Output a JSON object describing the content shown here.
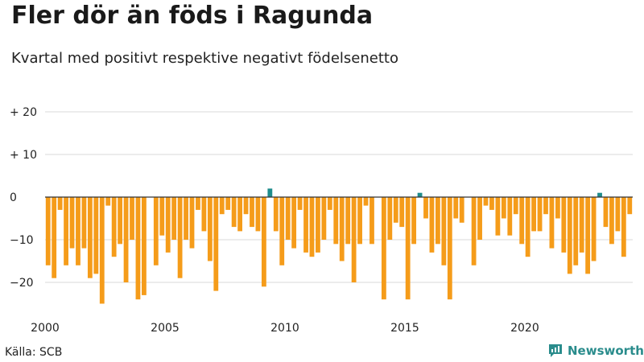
{
  "title": "Fler dör än föds i Ragunda",
  "subtitle": "Kvartal med positivt respektive negativt födelsenetto",
  "source": "Källa: SCB",
  "brand": "Newsworthy",
  "colors": {
    "negative": "#f59c1a",
    "positive": "#1e8c8c",
    "zero_line": "#333333",
    "grid": "#d9d9d9",
    "brand": "#2a8c8c"
  },
  "chart_data": {
    "type": "bar",
    "title": "Fler dör än föds i Ragunda",
    "subtitle": "Kvartal med positivt respektive negativt födelsenetto",
    "xlabel": "",
    "ylabel": "",
    "ylim": [
      -27,
      22
    ],
    "y_ticks": [
      {
        "value": 20,
        "label": "+ 20"
      },
      {
        "value": 10,
        "label": "+ 10"
      },
      {
        "value": 0,
        "label": "0"
      },
      {
        "value": -10,
        "label": "−10"
      },
      {
        "value": -20,
        "label": "−20"
      }
    ],
    "x_ticks": [
      "2000",
      "2005",
      "2010",
      "2015",
      "2020"
    ],
    "start_year": 2000,
    "periods_per_year": 4,
    "values": [
      -16,
      -19,
      -3,
      -16,
      -12,
      -16,
      -12,
      -19,
      -18,
      -25,
      -2,
      -14,
      -11,
      -20,
      -10,
      -24,
      -23,
      0,
      -16,
      -9,
      -13,
      -10,
      -19,
      -10,
      -12,
      -3,
      -8,
      -15,
      -22,
      -4,
      -3,
      -7,
      -8,
      -4,
      -7,
      -8,
      -21,
      2,
      -8,
      -16,
      -10,
      -12,
      -3,
      -13,
      -14,
      -13,
      -10,
      -3,
      -11,
      -15,
      -11,
      -20,
      -11,
      -2,
      -11,
      0,
      -24,
      -10,
      -6,
      -7,
      -24,
      -11,
      1,
      -5,
      -13,
      -11,
      -16,
      -24,
      -5,
      -6,
      0,
      -16,
      -10,
      -2,
      -3,
      -9,
      -5,
      -9,
      -4,
      -11,
      -14,
      -8,
      -8,
      -4,
      -12,
      -5,
      -13,
      -18,
      -16,
      -13,
      -18,
      -15,
      1,
      -7,
      -11,
      -8,
      -14,
      -4
    ]
  }
}
